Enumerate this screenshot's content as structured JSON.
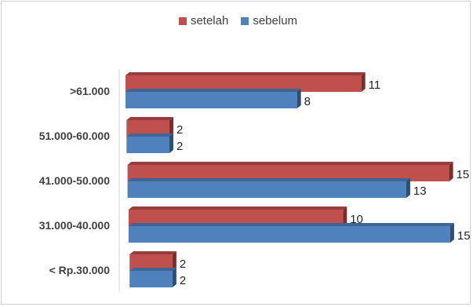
{
  "chart_data": {
    "type": "bar",
    "orientation": "horizontal",
    "style": "3d",
    "categories": [
      ">61.000",
      "51.000-60.000",
      "41.000-50.000",
      "31.000-40.000",
      "< Rp.30.000"
    ],
    "series": [
      {
        "name": "setelah",
        "color": "#c0504d",
        "values": [
          11,
          2,
          15,
          10,
          2
        ]
      },
      {
        "name": "sebelum",
        "color": "#4f81bd",
        "values": [
          8,
          2,
          13,
          15,
          2
        ]
      }
    ],
    "xlim": [
      0,
      15
    ],
    "legend_position": "top",
    "grid": false,
    "data_labels": true
  }
}
